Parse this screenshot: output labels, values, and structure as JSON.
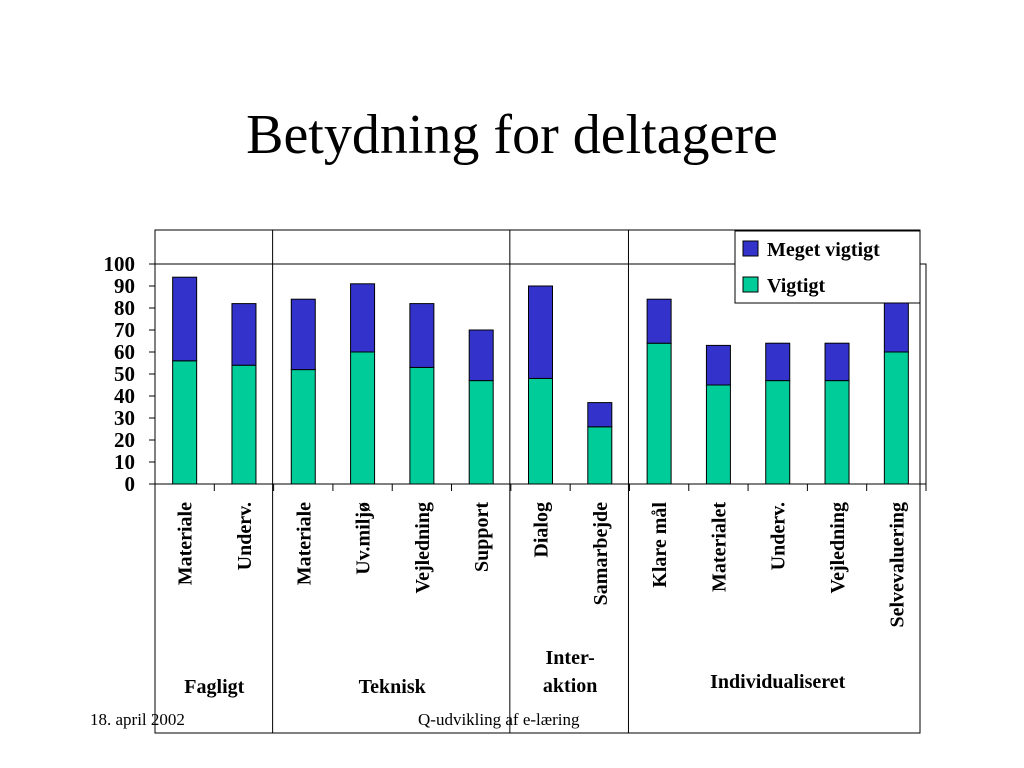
{
  "slide": {
    "title": "Betydning for deltagere",
    "footer_date": "18. april 2002",
    "footer_title": "Q-udvikling af e-læring"
  },
  "chart_data": {
    "type": "bar",
    "stacked": true,
    "categories": [
      "Materiale",
      "Underv.",
      "Materiale",
      "Uv.miljø",
      "Vejledning",
      "Support",
      "Dialog",
      "Samarbejde",
      "Klare mål",
      "Materialet",
      "Underv.",
      "Vejledning",
      "Selvevaluering"
    ],
    "series": [
      {
        "name": "Vigtigt",
        "color": "#00cc99",
        "values": [
          56,
          54,
          52,
          60,
          53,
          47,
          48,
          26,
          64,
          45,
          47,
          47,
          60
        ]
      },
      {
        "name": "Meget vigtigt",
        "color": "#3333cc",
        "values": [
          38,
          28,
          32,
          31,
          29,
          23,
          42,
          11,
          20,
          18,
          17,
          17,
          25
        ]
      }
    ],
    "groups": [
      {
        "label_lines": [
          "Fagligt"
        ],
        "count": 2
      },
      {
        "label_lines": [
          "Teknisk"
        ],
        "count": 4
      },
      {
        "label_lines": [
          "Inter-",
          "aktion"
        ],
        "count": 2
      },
      {
        "label_lines": [
          "Individualiseret"
        ],
        "count": 5
      }
    ],
    "yticks": [
      0,
      10,
      20,
      30,
      40,
      50,
      60,
      70,
      80,
      90,
      100
    ],
    "ylim": [
      0,
      100
    ],
    "grid": false,
    "legend": {
      "position": "top-right",
      "order": [
        "Meget vigtigt",
        "Vigtigt"
      ]
    }
  }
}
